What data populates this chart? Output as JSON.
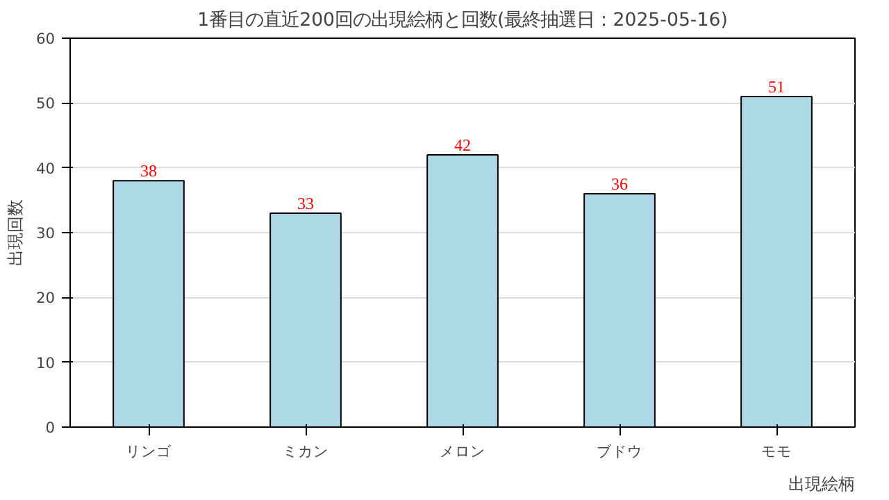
{
  "chart_data": {
    "type": "bar",
    "title": "1番目の直近200回の出現絵柄と回数(最終抽選日：2025-05-16)",
    "xlabel": "出現絵柄",
    "ylabel": "出現回数",
    "categories": [
      "リンゴ",
      "ミカン",
      "メロン",
      "ブドウ",
      "モモ"
    ],
    "values": [
      38,
      33,
      42,
      36,
      51
    ],
    "color": "#add8e6",
    "data_labels": true,
    "ylim": [
      0,
      60
    ],
    "yticks": [
      0,
      10,
      20,
      30,
      40,
      50,
      60
    ],
    "grid": "y"
  }
}
